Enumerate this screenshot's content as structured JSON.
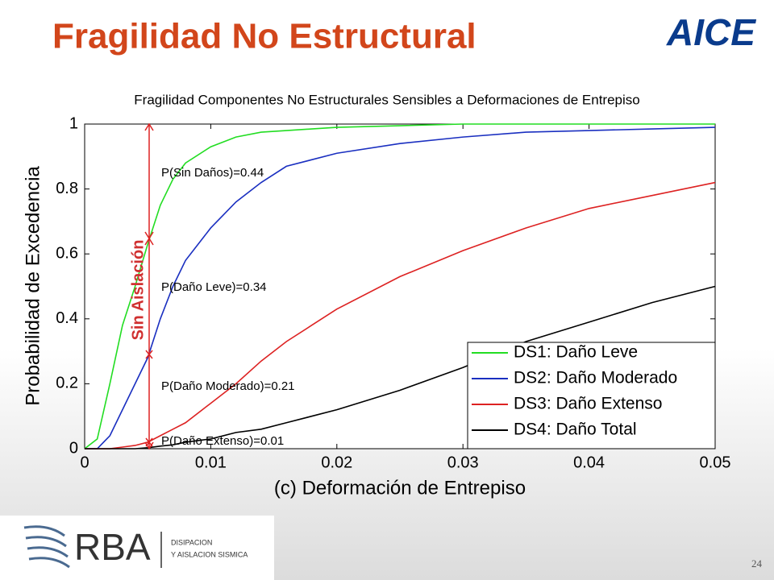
{
  "slide": {
    "title": "Fragilidad No Estructural",
    "logo": "AICE",
    "footer_brand": "RBA",
    "footer_line1": "DISIPACION",
    "footer_line2": "Y AISLACION SISMICA",
    "page_number": "24"
  },
  "chart_data": {
    "type": "line",
    "title": "Fragilidad Componentes No Estructurales Sensibles a Deformaciones de Entrepiso",
    "xlabel": "(c) Deformación de Entrepiso",
    "ylabel": "Probabilidad de Excedencia",
    "x": [
      0,
      0.001,
      0.002,
      0.003,
      0.004,
      0.005,
      0.006,
      0.007,
      0.008,
      0.01,
      0.012,
      0.014,
      0.016,
      0.018,
      0.02,
      0.025,
      0.03,
      0.035,
      0.04,
      0.045,
      0.05
    ],
    "series": [
      {
        "name": "DS1: Daño Leve",
        "color": "#22dd22",
        "values": [
          0,
          0.03,
          0.2,
          0.38,
          0.5,
          0.63,
          0.75,
          0.83,
          0.88,
          0.93,
          0.96,
          0.975,
          0.98,
          0.985,
          0.99,
          0.995,
          1,
          1,
          1,
          1,
          1
        ]
      },
      {
        "name": "DS2: Daño Moderado",
        "color": "#1a2fc0",
        "values": [
          0,
          0,
          0.04,
          0.12,
          0.2,
          0.28,
          0.4,
          0.5,
          0.58,
          0.68,
          0.76,
          0.82,
          0.87,
          0.89,
          0.91,
          0.94,
          0.96,
          0.975,
          0.98,
          0.985,
          0.99
        ]
      },
      {
        "name": "DS3: Daño Extenso",
        "color": "#dd2222",
        "values": [
          0,
          0,
          0,
          0.005,
          0.01,
          0.02,
          0.04,
          0.06,
          0.08,
          0.14,
          0.2,
          0.27,
          0.33,
          0.38,
          0.43,
          0.53,
          0.61,
          0.68,
          0.74,
          0.78,
          0.82
        ]
      },
      {
        "name": "DS4: Daño Total",
        "color": "#000000",
        "values": [
          0,
          0,
          0,
          0,
          0,
          0.003,
          0.008,
          0.012,
          0.02,
          0.03,
          0.05,
          0.06,
          0.08,
          0.1,
          0.12,
          0.18,
          0.25,
          0.33,
          0.39,
          0.45,
          0.5
        ]
      }
    ],
    "xlim": [
      0,
      0.05
    ],
    "xticks": [
      0,
      0.01,
      0.02,
      0.03,
      0.04,
      0.05
    ],
    "ylim": [
      0,
      1
    ],
    "yticks": [
      0,
      0.2,
      0.4,
      0.6,
      0.8,
      1
    ],
    "legend": "lower right",
    "annotations": [
      {
        "text": "P(Sin Daños)=0.44"
      },
      {
        "text": "P(Daño Leve)=0.34"
      },
      {
        "text": "P(Daño Moderado)=0.21"
      },
      {
        "text": "P(Daño Extenso)=0.01"
      },
      {
        "text": "Sin Aislación"
      }
    ]
  }
}
